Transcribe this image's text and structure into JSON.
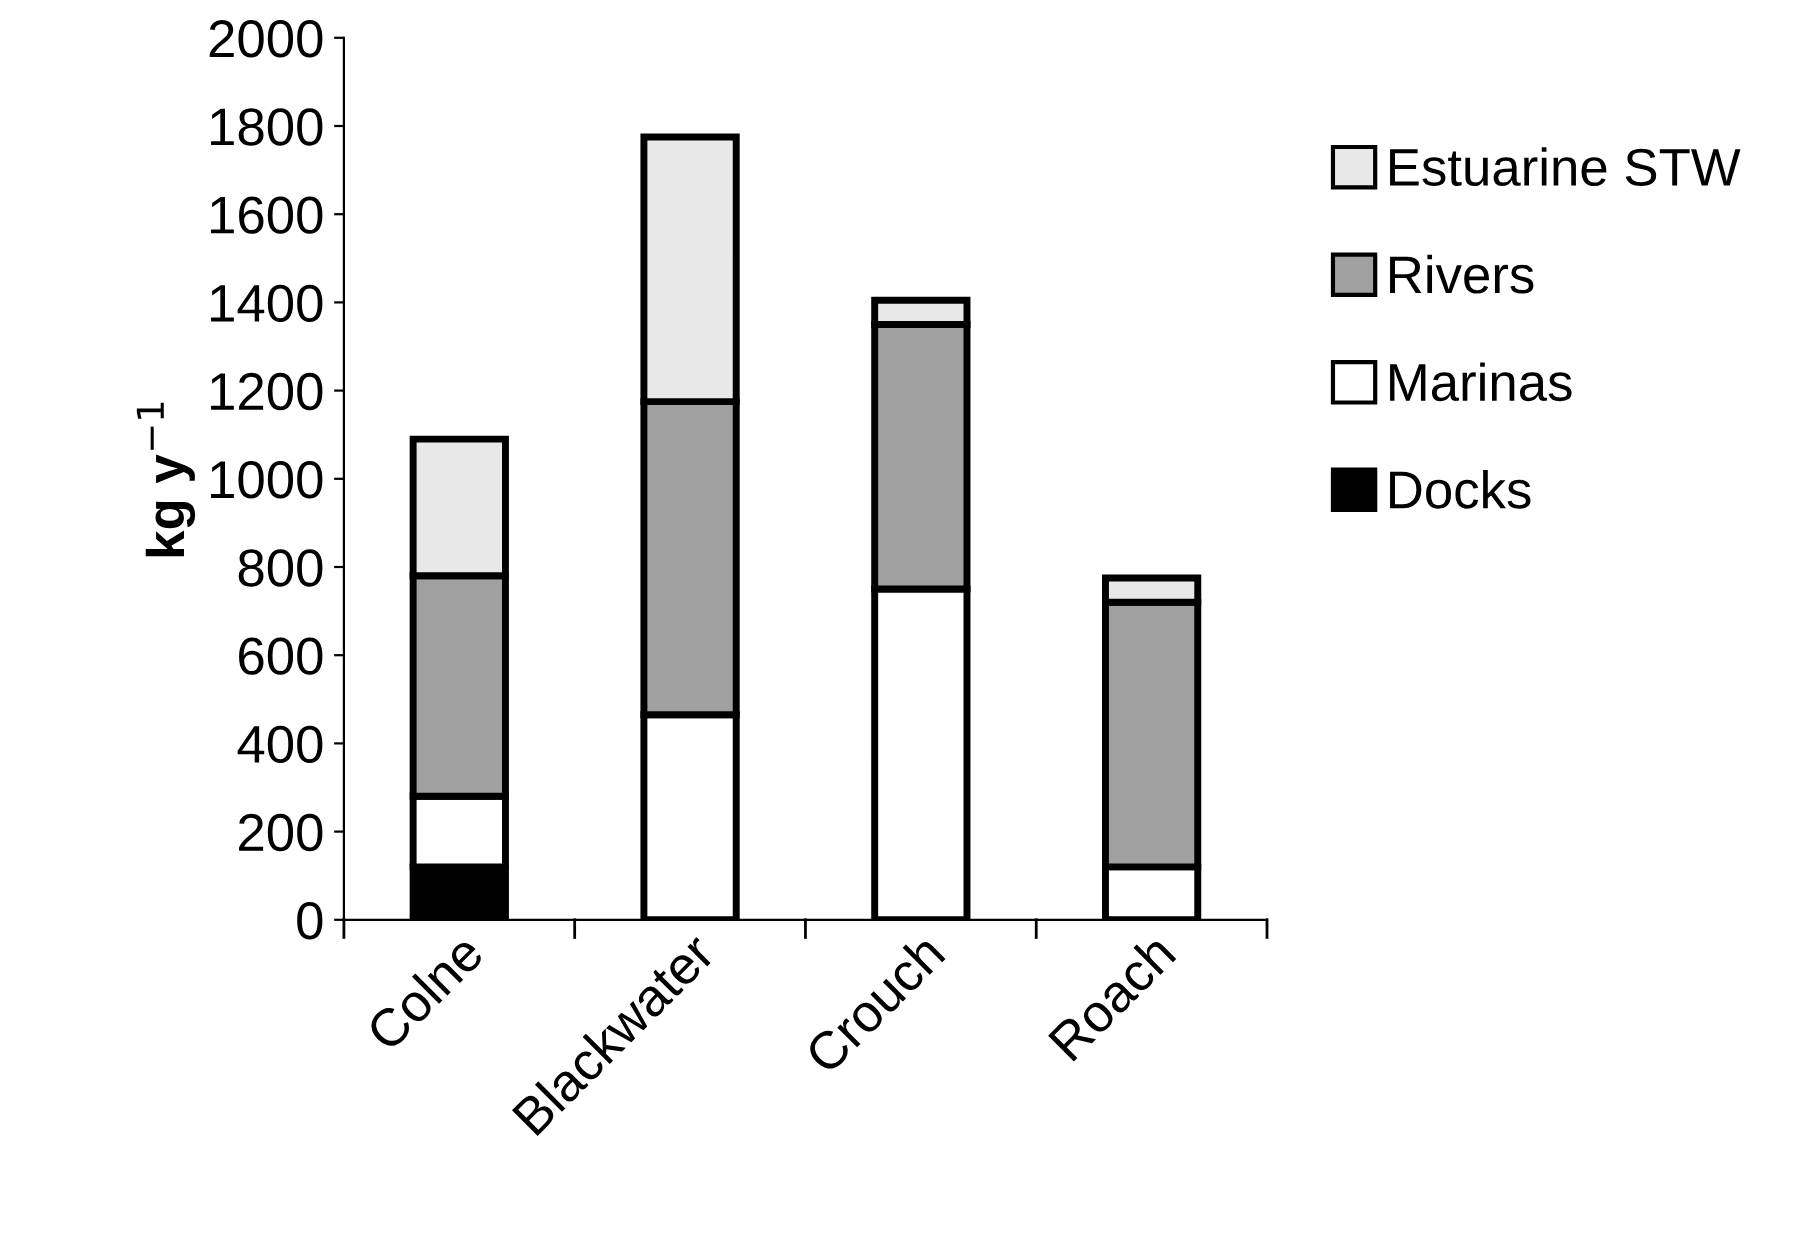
{
  "chart_data": {
    "type": "bar",
    "stacked": true,
    "ylabel": "kg y$^{−1}$",
    "categories": [
      "Colne",
      "Blackwater",
      "Crouch",
      "Roach"
    ],
    "series": [
      {
        "name": "Docks",
        "color": "#000000",
        "values": [
          120,
          0,
          0,
          0
        ]
      },
      {
        "name": "Marinas",
        "color": "#ffffff",
        "values": [
          160,
          465,
          750,
          120
        ]
      },
      {
        "name": "Rivers",
        "color": "#a0a0a0",
        "values": [
          500,
          710,
          600,
          600
        ]
      },
      {
        "name": "Estuarine STW",
        "color": "#e8e8e8",
        "values": [
          310,
          600,
          55,
          55
        ]
      }
    ],
    "ylim": [
      0,
      2000
    ],
    "yticks": [
      0,
      200,
      400,
      600,
      800,
      1000,
      1200,
      1400,
      1600,
      1800,
      2000
    ],
    "grid": false,
    "legend": "right"
  }
}
